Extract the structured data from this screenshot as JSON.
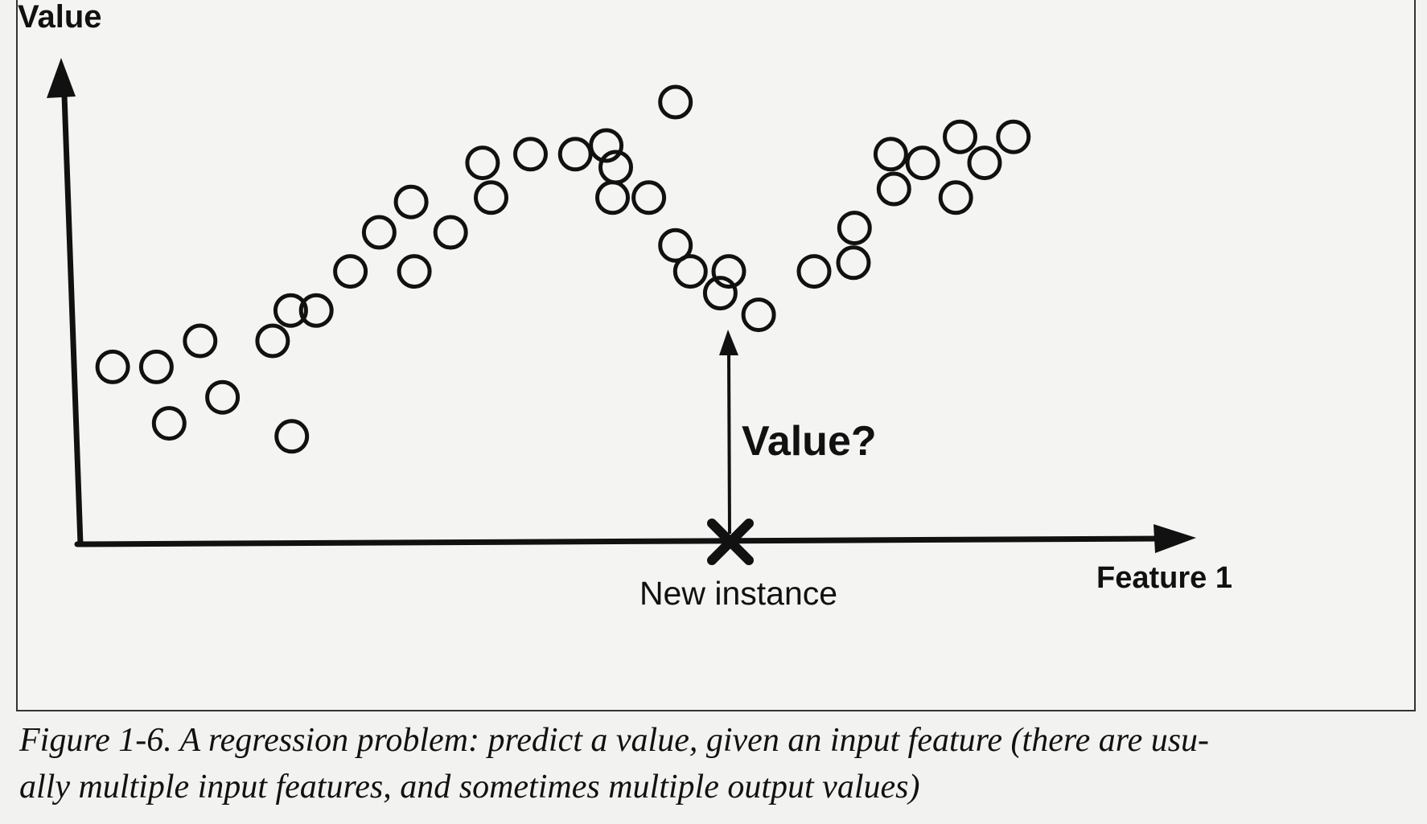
{
  "labels": {
    "y_axis": "Value",
    "x_axis": "Feature 1",
    "query": "Value?",
    "new_instance": "New instance"
  },
  "caption": {
    "line1": "Figure 1-6. A regression problem: predict a value, given an input feature (there are usu-",
    "line2": "ally multiple input features, and sometimes multiple output values)"
  },
  "colors": {
    "ink": "#111111",
    "paper": "#f4f4f2"
  },
  "chart_data": {
    "type": "scatter",
    "xlabel": "Feature 1",
    "ylabel": "Value",
    "xlim": [
      0,
      100
    ],
    "ylim": [
      0,
      100
    ],
    "grid": false,
    "points": [
      [
        2.5,
        34.0
      ],
      [
        6.6,
        34.0
      ],
      [
        7.8,
        21.0
      ],
      [
        10.7,
        40.0
      ],
      [
        12.8,
        27.0
      ],
      [
        17.5,
        40.0
      ],
      [
        19.3,
        18.0
      ],
      [
        19.2,
        47.0
      ],
      [
        21.6,
        47.0
      ],
      [
        24.8,
        56.0
      ],
      [
        27.5,
        65.0
      ],
      [
        30.5,
        72.0
      ],
      [
        30.8,
        56.0
      ],
      [
        34.2,
        65.0
      ],
      [
        37.2,
        81.0
      ],
      [
        38.0,
        73.0
      ],
      [
        41.7,
        83.0
      ],
      [
        45.9,
        83.0
      ],
      [
        48.8,
        85.0
      ],
      [
        49.7,
        80.0
      ],
      [
        49.4,
        73.0
      ],
      [
        52.8,
        73.0
      ],
      [
        55.3,
        95.0
      ],
      [
        55.3,
        62.0
      ],
      [
        56.7,
        56.0
      ],
      [
        59.5,
        51.0
      ],
      [
        60.3,
        56.0
      ],
      [
        63.1,
        46.0
      ],
      [
        68.3,
        56.0
      ],
      [
        72.1,
        66.0
      ],
      [
        72.0,
        58.0
      ],
      [
        75.5,
        83.0
      ],
      [
        75.8,
        75.0
      ],
      [
        78.5,
        81.0
      ],
      [
        81.6,
        73.0
      ],
      [
        82.0,
        87.0
      ],
      [
        84.3,
        81.0
      ],
      [
        87.0,
        87.0
      ]
    ],
    "new_instance_x": 55.0
  }
}
